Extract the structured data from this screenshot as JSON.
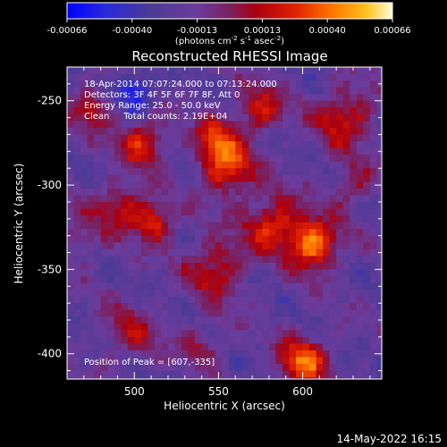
{
  "chart_data": {
    "type": "heatmap",
    "title": "Reconstructed RHESSI Image",
    "xlabel": "Heliocentric X (arcsec)",
    "ylabel": "Heliocentric Y (arcsec)",
    "xlim": [
      460,
      647
    ],
    "ylim": [
      -415,
      -230
    ],
    "x_ticks": [
      500,
      550,
      600
    ],
    "y_ticks": [
      -250,
      -300,
      -350,
      -400
    ],
    "colorbar": {
      "range": [
        -0.00066,
        0.00066
      ],
      "ticks": [
        "-0.00066",
        "-0.00040",
        "-0.00013",
        "0.00013",
        "0.00040",
        "0.00066"
      ],
      "unit_label": "(photons cm",
      "unit_sup1": "-2",
      "unit_mid": " s",
      "unit_sup2": "-1",
      "unit_end": " asec",
      "unit_sup3": "-2",
      "unit_close": ")"
    },
    "annotations": [
      "18-Apr-2014 07:07:24.000 to 07:13:24.000",
      "Detectors: 3F 4F 5F 6F 7F 8F, Att 0",
      "Energy Range: 25.0 - 50.0 keV",
      "Clean     Total counts: 2.19E+04"
    ],
    "peak_label": "Position of Peak = [607,-335]",
    "peak": [
      607,
      -335
    ],
    "sources": [
      {
        "x": 607,
        "y": -335,
        "intensity": 0.00066,
        "spread": 10
      },
      {
        "x": 582,
        "y": -323,
        "intensity": 0.00045,
        "spread": 12
      },
      {
        "x": 555,
        "y": -290,
        "intensity": 0.00052,
        "spread": 11
      },
      {
        "x": 548,
        "y": -272,
        "intensity": 0.0004,
        "spread": 9
      },
      {
        "x": 575,
        "y": -255,
        "intensity": 0.00038,
        "spread": 10
      },
      {
        "x": 505,
        "y": -275,
        "intensity": 0.00042,
        "spread": 10
      },
      {
        "x": 492,
        "y": -312,
        "intensity": 0.00035,
        "spread": 10
      },
      {
        "x": 512,
        "y": -322,
        "intensity": 0.00046,
        "spread": 8
      },
      {
        "x": 475,
        "y": -255,
        "intensity": 0.00034,
        "spread": 9
      },
      {
        "x": 625,
        "y": -260,
        "intensity": 0.0004,
        "spread": 12
      },
      {
        "x": 630,
        "y": -300,
        "intensity": 0.00028,
        "spread": 9
      },
      {
        "x": 548,
        "y": -350,
        "intensity": 0.00038,
        "spread": 12
      },
      {
        "x": 600,
        "y": -405,
        "intensity": 0.00055,
        "spread": 10
      },
      {
        "x": 498,
        "y": -388,
        "intensity": 0.00025,
        "spread": 12
      },
      {
        "x": 540,
        "y": -395,
        "intensity": 0.00022,
        "spread": 9
      },
      {
        "x": 470,
        "y": -330,
        "intensity": 0.0002,
        "spread": 9
      }
    ],
    "background_level": -0.0002,
    "min_location": [
      500,
      -245
    ]
  },
  "footer_timestamp": "14-May-2022 16:15"
}
